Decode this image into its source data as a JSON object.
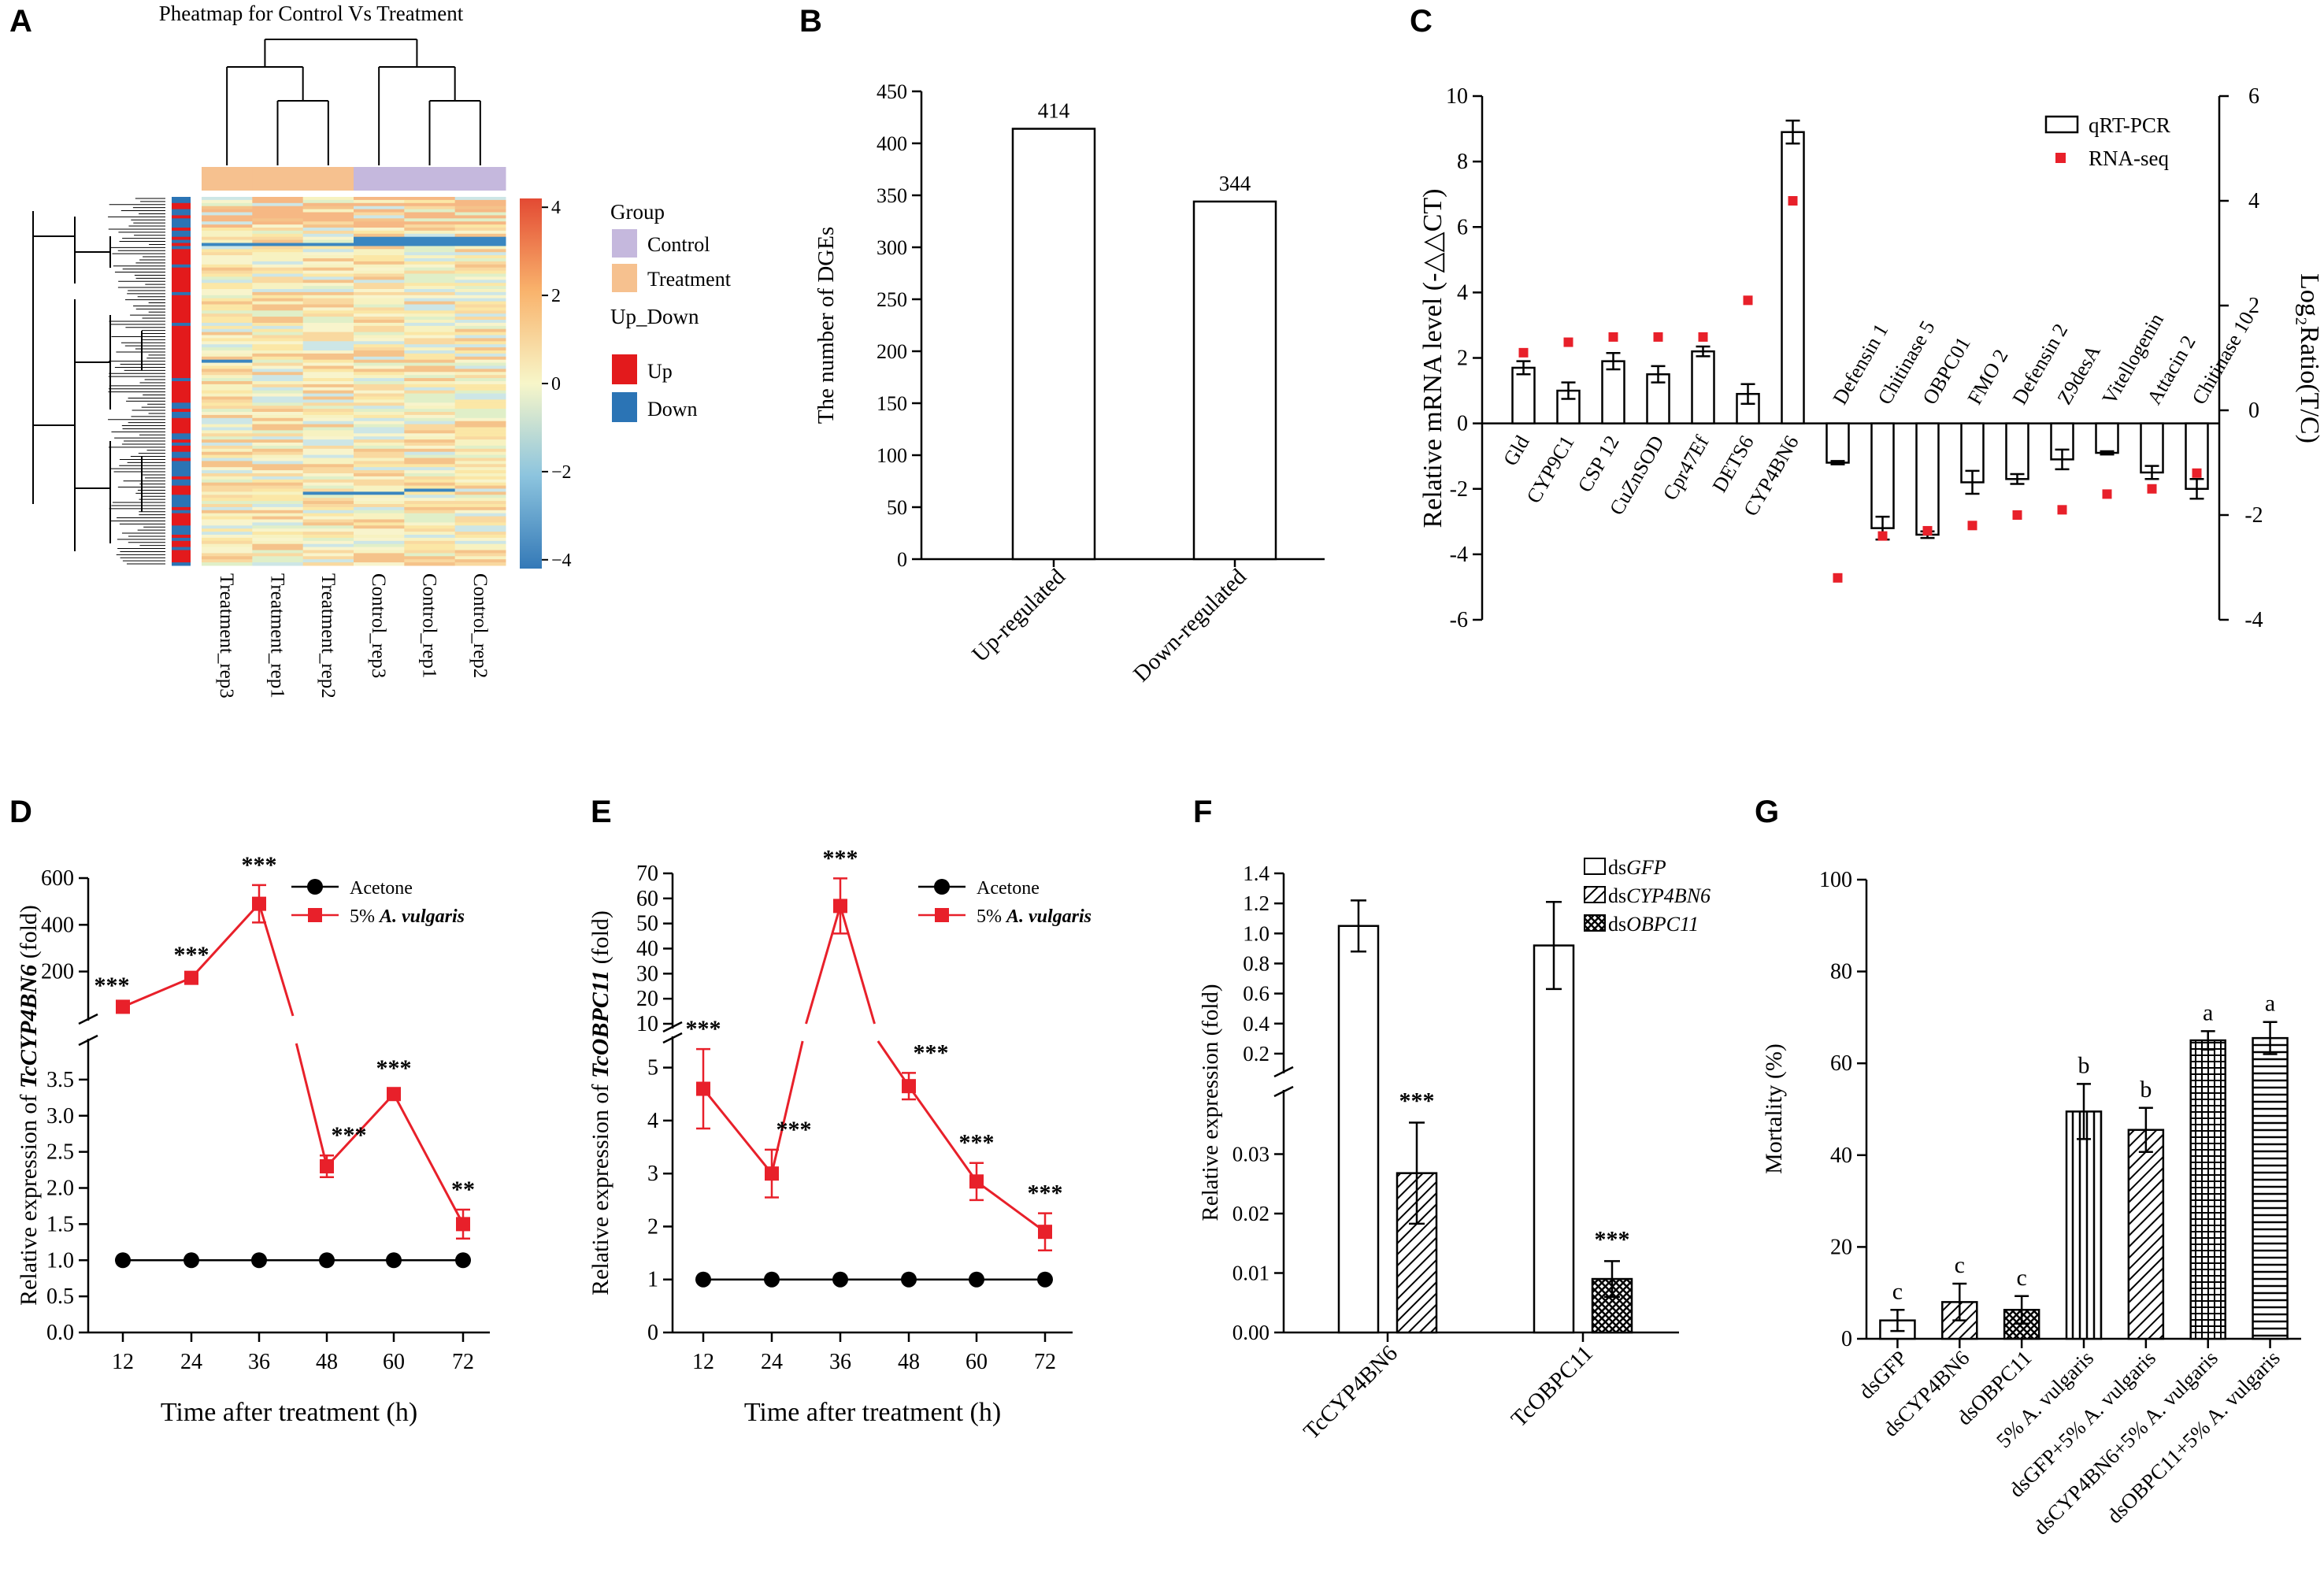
{
  "figure": {
    "panel_letters": [
      "A",
      "B",
      "C",
      "D",
      "E",
      "F",
      "G"
    ]
  },
  "chart_data": [
    {
      "panel": "A",
      "type": "heatmap",
      "title": "Pheatmap for Control Vs Treatment",
      "columns": [
        "Treatment_rep3",
        "Treatment_rep1",
        "Treatment_rep2",
        "Control_rep3",
        "Control_rep1",
        "Control_rep2"
      ],
      "column_groups": [
        "Treatment",
        "Treatment",
        "Treatment",
        "Control",
        "Control",
        "Control"
      ],
      "color_scale": {
        "min": -4,
        "max": 4,
        "ticks": [
          "4",
          "2",
          "0",
          "−2",
          "−4"
        ],
        "colors": [
          "#3a7fbf",
          "#f7f5c4",
          "#e84c3d"
        ]
      },
      "legend": {
        "group_title": "Group",
        "groups": [
          {
            "label": "Control",
            "color": "#c5b8dd"
          },
          {
            "label": "Treatment",
            "color": "#f6c18f"
          }
        ],
        "updown_title": "Up_Down",
        "updown": [
          {
            "label": "Up",
            "color": "#e31a1c"
          },
          {
            "label": "Down",
            "color": "#2b74b5"
          }
        ]
      }
    },
    {
      "panel": "B",
      "type": "bar",
      "categories": [
        "Up-regulated",
        "Down-regulated"
      ],
      "values": [
        414,
        344
      ],
      "value_labels": [
        "414",
        "344"
      ],
      "ylabel": "The number of DGEs",
      "ylim": [
        0,
        450
      ],
      "yticks": [
        0,
        50,
        100,
        150,
        200,
        250,
        300,
        350,
        400,
        450
      ]
    },
    {
      "panel": "C",
      "type": "bar",
      "categories": [
        "Gld",
        "CYP9C1",
        "CSP 12",
        "CuZnSOD",
        "Cpr47Ef",
        "DETS6",
        "CYP4BN6",
        "Defensin 1",
        "Chitinase 5",
        "OBPC01",
        "FMO 2",
        "Defensin 2",
        "Z9desA",
        "Vitellogenin",
        "Attacin 2",
        "Chitinase 10"
      ],
      "series": [
        {
          "name": "qRT-PCR",
          "axis": "left",
          "values": [
            1.7,
            1.0,
            1.9,
            1.5,
            2.2,
            0.9,
            8.9,
            -1.2,
            -3.2,
            -3.4,
            -1.8,
            -1.7,
            -1.1,
            -0.9,
            -1.5,
            -2.0
          ],
          "errors": [
            0.2,
            0.25,
            0.25,
            0.25,
            0.15,
            0.3,
            0.35,
            0.05,
            0.35,
            0.1,
            0.35,
            0.15,
            0.3,
            0.05,
            0.2,
            0.3
          ]
        },
        {
          "name": "RNA-seq",
          "axis": "right",
          "values": [
            1.1,
            1.3,
            1.4,
            1.4,
            1.4,
            2.1,
            4.0,
            -3.2,
            -2.4,
            -2.3,
            -2.2,
            -2.0,
            -1.9,
            -1.6,
            -1.5,
            -1.2
          ]
        }
      ],
      "ylabel": "Relative mRNA level (-△△CT)",
      "y2label": "Log₂Ratio(T/C)",
      "ylim": [
        -6,
        10
      ],
      "y2lim": [
        -4,
        6
      ],
      "yticks": [
        -6,
        -4,
        -2,
        0,
        2,
        4,
        6,
        8,
        10
      ],
      "y2ticks": [
        -4,
        -2,
        0,
        2,
        4,
        6
      ],
      "legend_labels": [
        "qRT-PCR",
        "RNA-seq"
      ]
    },
    {
      "panel": "D",
      "type": "line",
      "x": [
        12,
        24,
        36,
        48,
        60,
        72
      ],
      "series": [
        {
          "name": "Acetone",
          "values": [
            1,
            1,
            1,
            1,
            1,
            1
          ],
          "errors": [
            0,
            0,
            0,
            0,
            0,
            0
          ]
        },
        {
          "name": "5% A. vulgaris",
          "values": [
            49,
            173,
            490,
            2.3,
            3.3,
            1.5
          ],
          "errors": [
            5,
            12,
            80,
            0.15,
            0.08,
            0.2
          ]
        }
      ],
      "significance": [
        "***",
        "***",
        "***",
        "***",
        "***",
        "**"
      ],
      "xlabel": "Time after treatment (h)",
      "ylabel": "Relative expression of TcCYP4BN6 (fold)",
      "ylabel_parts": [
        "Relative expression of ",
        "TcCYP4BN6",
        " (fold)"
      ],
      "ylim_lower": [
        0,
        4
      ],
      "ylim_upper": [
        10,
        600
      ],
      "yticks_lower": [
        "0.0",
        "0.5",
        "1.0",
        "1.5",
        "2.0",
        "2.5",
        "3.0",
        "3.5"
      ],
      "yticks_upper": [
        "200",
        "400",
        "600"
      ],
      "legend_labels": [
        "Acetone",
        "5% ",
        "A. vulgaris"
      ]
    },
    {
      "panel": "E",
      "type": "line",
      "x": [
        12,
        24,
        36,
        48,
        60,
        72
      ],
      "series": [
        {
          "name": "Acetone",
          "values": [
            1,
            1,
            1,
            1,
            1,
            1
          ],
          "errors": [
            0,
            0,
            0,
            0,
            0,
            0
          ]
        },
        {
          "name": "5% A. vulgaris",
          "values": [
            4.6,
            3.0,
            57,
            4.65,
            2.85,
            1.9
          ],
          "errors": [
            0.75,
            0.45,
            11,
            0.25,
            0.35,
            0.35
          ]
        }
      ],
      "significance": [
        "***",
        "***",
        "***",
        "***",
        "***",
        "***"
      ],
      "xlabel": "Time after treatment (h)",
      "ylabel": "Relative expression of TcOBPC11 (fold)",
      "ylabel_parts": [
        "Relative expression of ",
        "TcOBPC11",
        " (fold)"
      ],
      "ylim_lower": [
        0,
        5.5
      ],
      "ylim_upper": [
        10,
        70
      ],
      "yticks_lower": [
        "0",
        "1",
        "2",
        "3",
        "4",
        "5"
      ],
      "yticks_upper": [
        "10",
        "20",
        "30",
        "40",
        "50",
        "60",
        "70"
      ],
      "legend_labels": [
        "Acetone",
        "5% ",
        "A. vulgaris"
      ]
    },
    {
      "panel": "F",
      "type": "bar",
      "categories": [
        "TcCYP4BN6",
        "TcOBPC11"
      ],
      "series": [
        {
          "name": "dsGFP",
          "values": [
            1.05,
            0.92
          ],
          "errors": [
            0.17,
            0.29
          ]
        },
        {
          "name": "dsCYP4BN6",
          "values": [
            0.0268,
            null
          ],
          "errors": [
            0.0085,
            null
          ]
        },
        {
          "name": "dsOBPC11",
          "values": [
            null,
            0.009
          ],
          "errors": [
            null,
            0.003
          ]
        }
      ],
      "significance": [
        "***",
        "***"
      ],
      "ylabel": "Relative expression (fold)",
      "ylim_lower": [
        0,
        0.04
      ],
      "ylim_upper": [
        0.1,
        1.4
      ],
      "yticks_lower": [
        "0.00",
        "0.01",
        "0.02",
        "0.03"
      ],
      "yticks_upper": [
        "0.2",
        "0.4",
        "0.6",
        "0.8",
        "1.0",
        "1.2",
        "1.4"
      ],
      "legend": [
        [
          "ds",
          "GFP"
        ],
        [
          "ds",
          "CYP4BN6"
        ],
        [
          "ds",
          "OBPC11"
        ]
      ]
    },
    {
      "panel": "G",
      "type": "bar",
      "categories": [
        "dsGFP",
        "dsCYP4BN6",
        "dsOBPC11",
        "5% A. vulgaris",
        "dsGFP+5% A. vulgaris",
        "dsCYP4BN6+5% A. vulgaris",
        "dsOBPC11+5% A. vulgaris"
      ],
      "values": [
        4,
        8,
        6.3,
        49.5,
        45.5,
        65,
        65.5
      ],
      "errors": [
        2.3,
        4,
        3,
        6,
        4.8,
        2,
        3.5
      ],
      "letters": [
        "c",
        "c",
        "c",
        "b",
        "b",
        "a",
        "a"
      ],
      "ylabel": "Mortality (%)",
      "ylim": [
        0,
        100
      ],
      "yticks": [
        0,
        20,
        40,
        60,
        80,
        100
      ]
    }
  ]
}
